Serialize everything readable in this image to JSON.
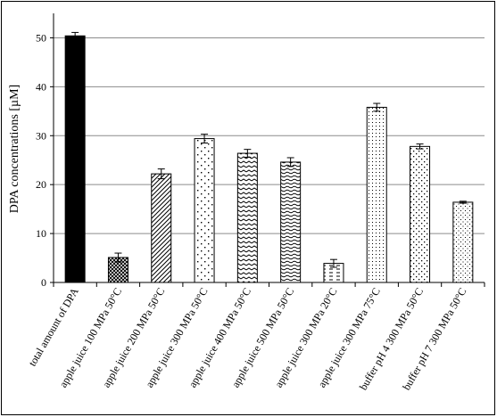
{
  "chart_data": {
    "type": "bar",
    "title": "",
    "xlabel": "",
    "ylabel": "DPA concentrations  [µM]",
    "ylim": [
      0,
      55
    ],
    "yticks": [
      0,
      10,
      20,
      30,
      40,
      50
    ],
    "grid": "horizontal",
    "categories": [
      "total amount of DPA",
      "apple juice  100 MPa 50°C",
      "apple juice  200 MPa 50°C",
      "apple juice  300 MPa 50°C",
      "apple juice  400 MPa 50°C",
      "apple juice  500 MPa 50°C",
      "apple juice  300 MPa 20°C",
      "apple juice  300 MPa 75°C",
      "buffer pH 4  300 MPa 50°C",
      "buffer pH 7  300 MPa 50°C"
    ],
    "values": [
      50.4,
      5.1,
      22.2,
      29.4,
      26.4,
      24.6,
      3.9,
      35.8,
      27.8,
      16.4
    ],
    "errors": [
      0.7,
      0.9,
      1.0,
      0.9,
      0.8,
      0.9,
      0.8,
      0.8,
      0.5,
      0.2
    ],
    "patterns": [
      "solid",
      "cross",
      "diag-up",
      "dots-sparse",
      "wave",
      "hlines",
      "dash-h",
      "dots-fine",
      "dots-medium",
      "dots-small"
    ]
  }
}
